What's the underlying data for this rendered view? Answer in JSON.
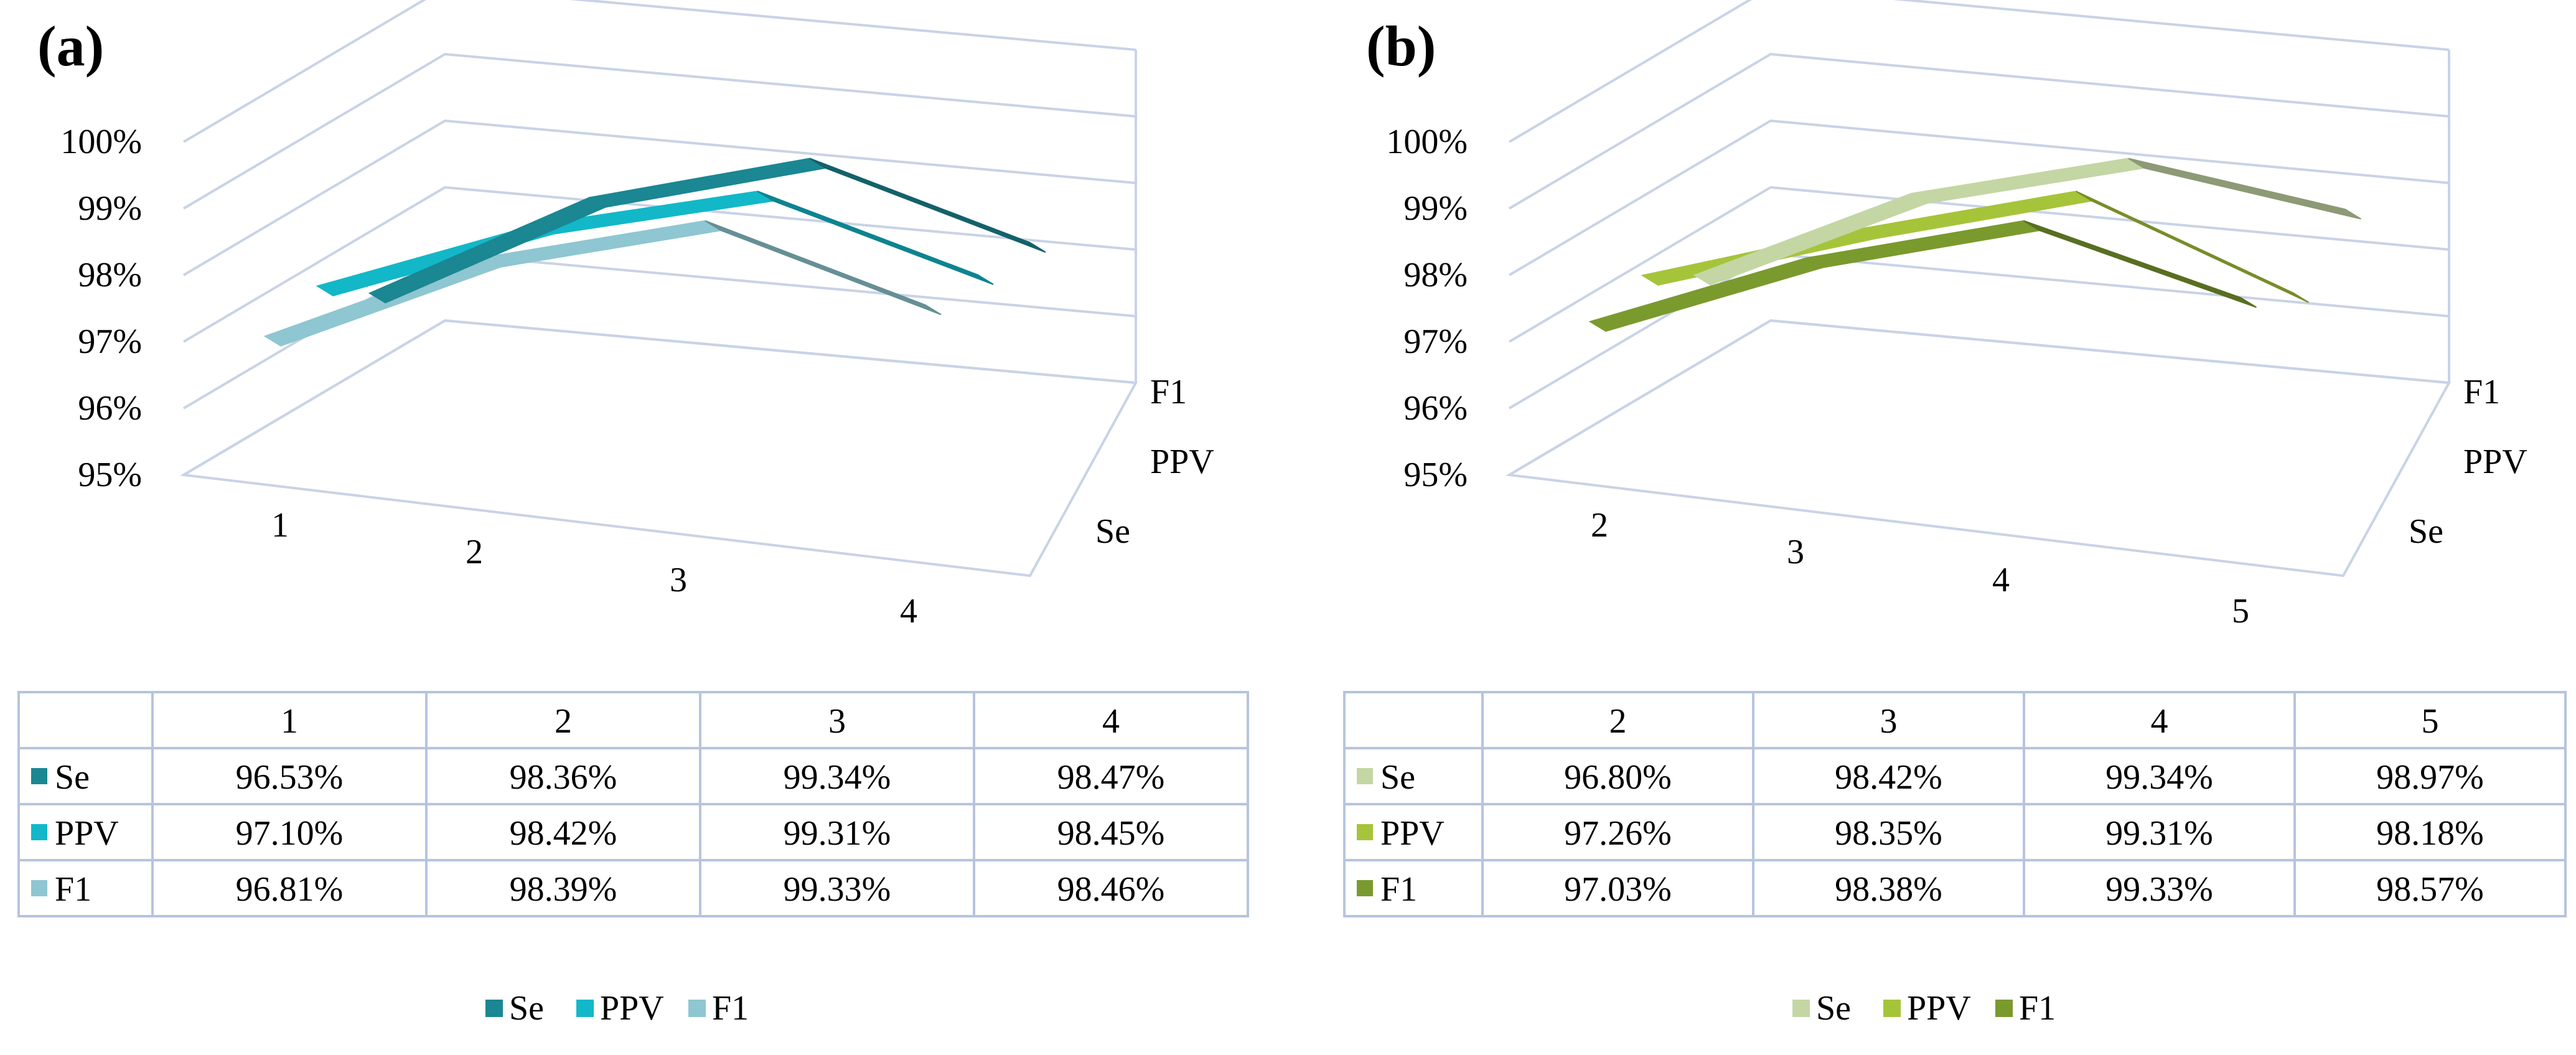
{
  "chart_data": [
    {
      "panel": "(a)",
      "type": "line",
      "view": "3d-ribbon",
      "categories": [
        "1",
        "2",
        "3",
        "4"
      ],
      "depth_axis": [
        "Se",
        "PPV",
        "F1"
      ],
      "y_ticks": [
        "95%",
        "96%",
        "97%",
        "98%",
        "99%",
        "100%"
      ],
      "ylim": [
        95,
        100
      ],
      "series": [
        {
          "name": "Se",
          "color": "#1a8793",
          "values": [
            96.53,
            98.36,
            99.34,
            98.47
          ],
          "labels": [
            "96.53%",
            "98.36%",
            "99.34%",
            "98.47%"
          ]
        },
        {
          "name": "PPV",
          "color": "#12b8c8",
          "values": [
            97.1,
            98.42,
            99.31,
            98.45
          ],
          "labels": [
            "97.10%",
            "98.42%",
            "99.31%",
            "98.45%"
          ]
        },
        {
          "name": "F1",
          "color": "#8ec6d1",
          "values": [
            96.81,
            98.39,
            99.33,
            98.46
          ],
          "labels": [
            "96.81%",
            "98.39%",
            "99.33%",
            "98.46%"
          ]
        }
      ],
      "legend": [
        "Se",
        "PPV",
        "F1"
      ],
      "legend_position": "bottom"
    },
    {
      "panel": "(b)",
      "type": "line",
      "view": "3d-ribbon",
      "categories": [
        "2",
        "3",
        "4",
        "5"
      ],
      "depth_axis": [
        "Se",
        "PPV",
        "F1"
      ],
      "y_ticks": [
        "95%",
        "96%",
        "97%",
        "98%",
        "99%",
        "100%"
      ],
      "ylim": [
        95,
        100
      ],
      "series": [
        {
          "name": "Se",
          "color": "#c3d6a4",
          "values": [
            96.8,
            98.42,
            99.34,
            98.97
          ],
          "labels": [
            "96.80%",
            "98.42%",
            "99.34%",
            "98.97%"
          ]
        },
        {
          "name": "PPV",
          "color": "#a6c43a",
          "values": [
            97.26,
            98.35,
            99.31,
            98.18
          ],
          "labels": [
            "97.26%",
            "98.35%",
            "99.31%",
            "98.18%"
          ]
        },
        {
          "name": "F1",
          "color": "#7a9a2e",
          "values": [
            97.03,
            98.38,
            99.33,
            98.57
          ],
          "labels": [
            "97.03%",
            "98.38%",
            "99.33%",
            "98.57%"
          ]
        }
      ],
      "legend": [
        "Se",
        "PPV",
        "F1"
      ],
      "legend_position": "bottom"
    }
  ]
}
